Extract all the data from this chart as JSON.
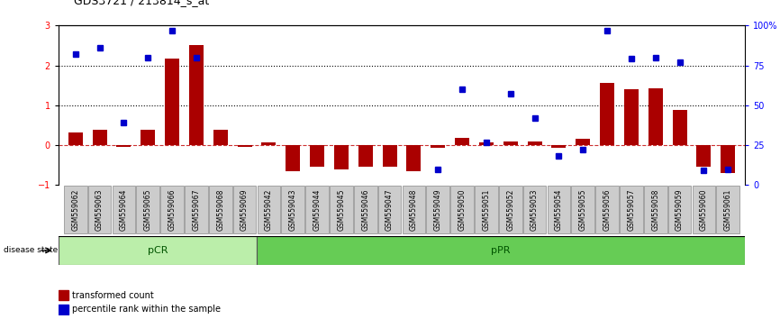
{
  "title": "GDS3721 / 213814_s_at",
  "samples": [
    "GSM559062",
    "GSM559063",
    "GSM559064",
    "GSM559065",
    "GSM559066",
    "GSM559067",
    "GSM559068",
    "GSM559069",
    "GSM559042",
    "GSM559043",
    "GSM559044",
    "GSM559045",
    "GSM559046",
    "GSM559047",
    "GSM559048",
    "GSM559049",
    "GSM559050",
    "GSM559051",
    "GSM559052",
    "GSM559053",
    "GSM559054",
    "GSM559055",
    "GSM559056",
    "GSM559057",
    "GSM559058",
    "GSM559059",
    "GSM559060",
    "GSM559061"
  ],
  "transformed_count": [
    0.32,
    0.38,
    -0.05,
    0.38,
    2.18,
    2.52,
    0.38,
    -0.05,
    0.07,
    -0.65,
    -0.55,
    -0.6,
    -0.55,
    -0.55,
    -0.65,
    -0.07,
    0.18,
    0.07,
    0.1,
    0.1,
    -0.07,
    0.15,
    1.55,
    1.4,
    1.42,
    0.88,
    -0.55,
    -0.7
  ],
  "percentile_rank": [
    82,
    86,
    39,
    80,
    97,
    80,
    null,
    null,
    null,
    null,
    null,
    null,
    null,
    null,
    null,
    10,
    60,
    27,
    57,
    42,
    18,
    22,
    97,
    79,
    80,
    77,
    9,
    10
  ],
  "pCR_count": 8,
  "pPR_count": 20,
  "ylim_left": [
    -1,
    3
  ],
  "ylim_right": [
    0,
    100
  ],
  "yticks_left": [
    -1,
    0,
    1,
    2,
    3
  ],
  "yticks_right": [
    0,
    25,
    50,
    75,
    100
  ],
  "ytick_labels_right": [
    "0",
    "25",
    "50",
    "75",
    "100%"
  ],
  "bar_color": "#aa0000",
  "dot_color": "#0000cc",
  "pCR_color": "#bbeeaa",
  "pPR_color": "#66cc55",
  "hline_color": "#cc3333",
  "dotted_color": "#000000",
  "background_color": "#ffffff",
  "xtick_bg": "#cccccc"
}
